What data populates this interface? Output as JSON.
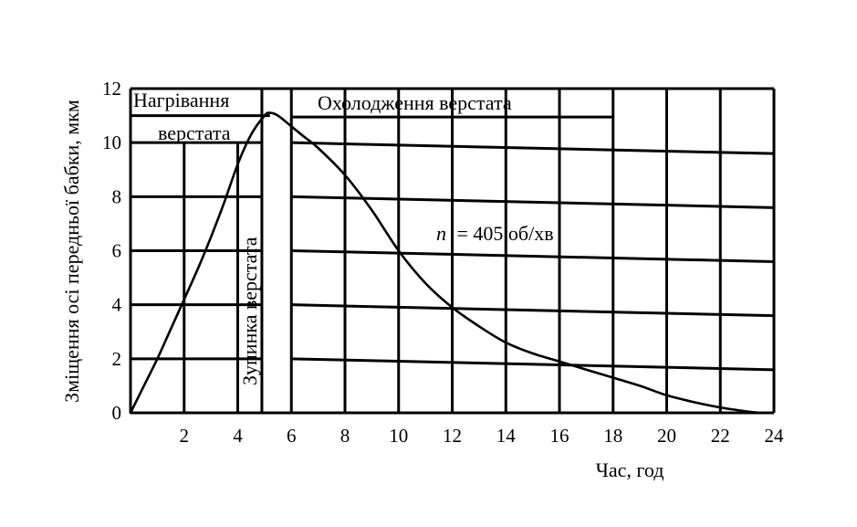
{
  "chart_data": {
    "type": "line",
    "title": "",
    "xlabel": "Час, год",
    "ylabel": "Зміщення осі передньої бабки, мкм",
    "xlim": [
      0,
      24
    ],
    "ylim": [
      0,
      12
    ],
    "x_ticks": [
      "2",
      "4",
      "6",
      "8",
      "10",
      "12",
      "14",
      "16",
      "18",
      "20",
      "22",
      "24"
    ],
    "y_ticks": [
      "0",
      "2",
      "4",
      "6",
      "8",
      "10",
      "12"
    ],
    "grid": true,
    "series": [
      {
        "name": "",
        "color": "#000000",
        "x": [
          0,
          0.5,
          1,
          1.5,
          2,
          2.5,
          3,
          3.5,
          4,
          4.5,
          5,
          5.2,
          5.5,
          6,
          6.5,
          7,
          8,
          9,
          10,
          11,
          12,
          13,
          14,
          15,
          16,
          17,
          18,
          19,
          20,
          21,
          22,
          23,
          23.5
        ],
        "y": [
          0,
          1.0,
          2.0,
          3.1,
          4.2,
          5.3,
          6.5,
          7.8,
          9.2,
          10.3,
          11.0,
          11.1,
          11.0,
          10.6,
          10.2,
          9.8,
          8.8,
          7.5,
          6.0,
          4.8,
          3.9,
          3.2,
          2.6,
          2.2,
          1.9,
          1.6,
          1.3,
          1.0,
          0.65,
          0.4,
          0.2,
          0.05,
          0
        ]
      }
    ],
    "annotations": {
      "heating_line1": "Нагрівання",
      "heating_line2": "верстата",
      "cooling": "Охолодження верстата",
      "stop": "Зупинка верстата",
      "speed_var": "n",
      "speed_value": "= 405 об/хв"
    }
  }
}
